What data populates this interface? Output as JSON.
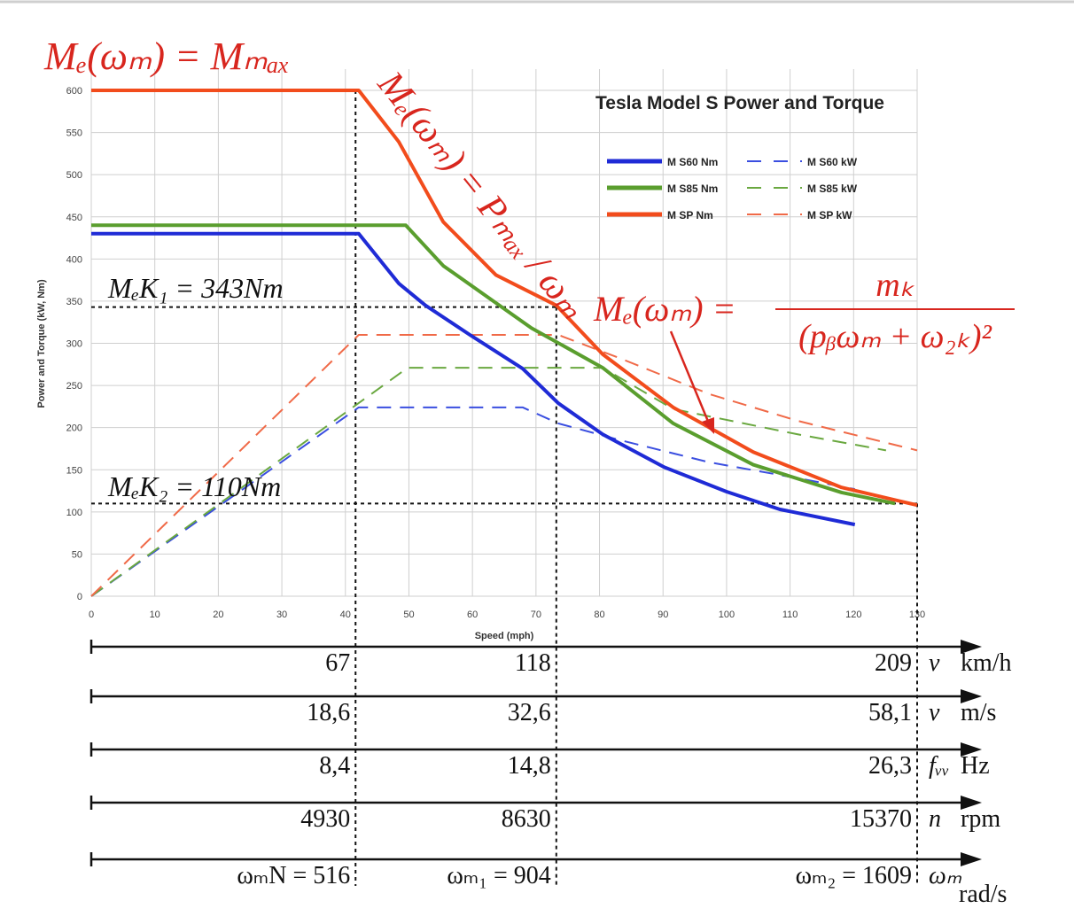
{
  "chart_data": {
    "type": "line",
    "title": "Tesla Model S Power and Torque",
    "x_label": "Speed (mph)",
    "y_label": "Power and Torque (kW, Nm)",
    "xlim": [
      0,
      130
    ],
    "ylim": [
      0,
      600
    ],
    "xticks": [
      0,
      10,
      20,
      30,
      40,
      50,
      60,
      70,
      80,
      90,
      100,
      110,
      120,
      130
    ],
    "yticks": [
      0,
      50,
      100,
      150,
      200,
      250,
      300,
      350,
      400,
      450,
      500,
      550,
      600
    ],
    "grid": true,
    "legend": "upper-right",
    "series": [
      {
        "name": "M S60 Nm",
        "color": "#1f2bd6",
        "dashed": false,
        "x": [
          0,
          42.1,
          48.4,
          52.6,
          59.6,
          67.9,
          73.5,
          80.5,
          90.2,
          100,
          108.4,
          120.2
        ],
        "values": [
          430,
          430,
          371,
          345,
          310,
          270,
          229,
          192,
          153,
          124,
          103,
          85
        ]
      },
      {
        "name": "M S60 kW",
        "color": "#3a4ee0",
        "dashed": true,
        "x": [
          0,
          42.1,
          67.9,
          73.5,
          83.3,
          97.2,
          111.2,
          120.2
        ],
        "values": [
          0,
          224,
          224,
          205,
          185,
          159,
          140,
          127
        ]
      },
      {
        "name": "M S85 Nm",
        "color": "#5a9e2e",
        "dashed": false,
        "x": [
          0,
          49.5,
          55.4,
          69.3,
          80.5,
          91.6,
          104.2,
          118.1,
          126.5
        ],
        "values": [
          440,
          440,
          392,
          318,
          271,
          205,
          156,
          123,
          110
        ]
      },
      {
        "name": "M S85 kW",
        "color": "#6aa840",
        "dashed": true,
        "x": [
          0,
          49.8,
          80.5,
          91.6,
          111.2,
          125.1
        ],
        "values": [
          0,
          271,
          271,
          222,
          192,
          173
        ]
      },
      {
        "name": "M SP Nm",
        "color": "#f24c1c",
        "dashed": false,
        "x": [
          0,
          42.1,
          48.4,
          55.4,
          63.7,
          73.2,
          80.5,
          91.6,
          104.2,
          118.1,
          130
        ],
        "values": [
          600,
          600,
          539,
          444,
          381,
          345,
          287,
          224,
          171,
          129,
          108
        ]
      },
      {
        "name": "M SP kW",
        "color": "#f06a48",
        "dashed": true,
        "x": [
          0,
          42.1,
          73.5,
          83.3,
          97.2,
          111.2,
          130
        ],
        "values": [
          0,
          310,
          310,
          282,
          240,
          208,
          173
        ]
      }
    ],
    "vlines": [
      41.6,
      73.2,
      130
    ],
    "hlines": [
      343,
      110
    ],
    "annotations": {
      "max_torque": "Mₑ(ωₘ) = Mₘₐₓ",
      "const_power": "Mₑ(ωₘ) = Pₘₐₓ / ωₘ",
      "mek1": "MₑK₁ = 343Nm",
      "mek2": "MₑK₂ = 110Nm",
      "kloss_lhs": "Mₑ(ωₘ) =",
      "kloss_num": "mₖ",
      "kloss_den": "(pᵦωₘ + ω₂ₖ)²"
    },
    "speed_scales": [
      {
        "symbol": "v",
        "unit": "km/h",
        "labels": [
          "67",
          "118",
          "209"
        ]
      },
      {
        "symbol": "v",
        "unit": "m/s",
        "labels": [
          "18,6",
          "32,6",
          "58,1"
        ]
      },
      {
        "symbol": "fᵥᵥ",
        "unit": "Hz",
        "labels": [
          "8,4",
          "14,8",
          "26,3"
        ]
      },
      {
        "symbol": "n",
        "unit": "rpm",
        "labels": [
          "4930",
          "8630",
          "15370"
        ]
      },
      {
        "symbol": "ωₘ",
        "unit": "rad/s",
        "labels": [
          "ωₘN = 516",
          "ωₘ₁ = 904",
          "ωₘ₂ = 1609"
        ]
      }
    ]
  }
}
